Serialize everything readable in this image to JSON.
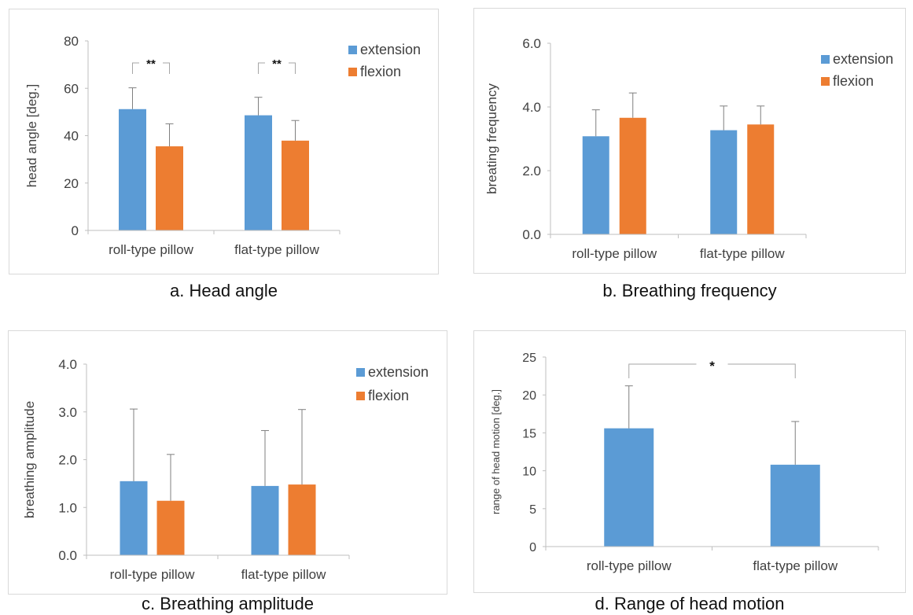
{
  "chart_data": [
    {
      "type": "bar",
      "caption": "a. Head angle",
      "categories": [
        "roll-type pillow",
        "flat-type pillow"
      ],
      "series": [
        {
          "name": "extension",
          "values": [
            51.2,
            48.6
          ],
          "errors": [
            9.0,
            7.6
          ]
        },
        {
          "name": "flexion",
          "values": [
            35.5,
            37.9
          ],
          "errors": [
            9.5,
            8.5
          ]
        }
      ],
      "ylabel": "head angle [deg.]",
      "ylim": [
        0,
        80
      ],
      "yticks": [
        "0",
        "20",
        "40",
        "60",
        "80"
      ],
      "legend_placement": "top-right",
      "grid": false,
      "significance": [
        {
          "label": "**",
          "group": 0
        },
        {
          "label": "**",
          "group": 1
        }
      ]
    },
    {
      "type": "bar",
      "caption": "b. Breathing frequency",
      "categories": [
        "roll-type pillow",
        "flat-type pillow"
      ],
      "series": [
        {
          "name": "extension",
          "values": [
            3.08,
            3.27
          ],
          "errors": [
            0.83,
            0.76
          ]
        },
        {
          "name": "flexion",
          "values": [
            3.66,
            3.45
          ],
          "errors": [
            0.78,
            0.58
          ]
        }
      ],
      "ylabel": "breating  frequency",
      "ylim": [
        0,
        6
      ],
      "yticks": [
        "0.0",
        "2.0",
        "4.0",
        "6.0"
      ],
      "legend_placement": "top-right",
      "grid": false
    },
    {
      "type": "bar",
      "caption": "c. Breathing amplitude",
      "categories": [
        "roll-type pillow",
        "flat-type pillow"
      ],
      "series": [
        {
          "name": "extension",
          "values": [
            1.55,
            1.45
          ],
          "errors": [
            1.51,
            1.16
          ]
        },
        {
          "name": "flexion",
          "values": [
            1.14,
            1.48
          ],
          "errors": [
            0.97,
            1.57
          ]
        }
      ],
      "ylabel": "breathing amplitude",
      "ylim": [
        0,
        4
      ],
      "yticks": [
        "0.0",
        "1.0",
        "2.0",
        "3.0",
        "4.0"
      ],
      "legend_placement": "top-right",
      "grid": false
    },
    {
      "type": "bar",
      "caption": "d. Range of head motion",
      "categories": [
        "roll-type pillow",
        "flat-type pillow"
      ],
      "series": [
        {
          "values": [
            15.6,
            10.8
          ],
          "errors": [
            5.6,
            5.7
          ]
        }
      ],
      "ylabel": "range of head motion [deg.]",
      "ylim": [
        0,
        25
      ],
      "yticks": [
        "0",
        "5",
        "10",
        "15",
        "20",
        "25"
      ],
      "grid": false,
      "significance": [
        {
          "label": "*",
          "between": [
            0,
            1
          ]
        }
      ]
    }
  ],
  "colors": {
    "extension": "#5b9bd5",
    "flexion": "#ed7d31",
    "axis": "#bfbfbf",
    "text": "#404040"
  }
}
